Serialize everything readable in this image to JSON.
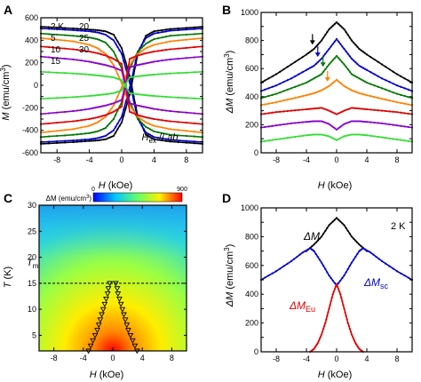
{
  "chart_data": [
    {
      "panel": "A",
      "type": "line",
      "xlabel": "H (kOe)",
      "ylabel": "M (emu/cm3)",
      "xlim": [
        -10,
        10
      ],
      "ylim": [
        -600,
        600
      ],
      "xticks": [
        -8,
        -4,
        0,
        4,
        8
      ],
      "yticks": [
        -600,
        -500,
        -400,
        -300,
        -200,
        -100,
        0,
        100,
        200,
        300,
        400,
        500,
        600
      ],
      "annotation": "Hex // ab",
      "legend_position": "top-left",
      "series": [
        {
          "name": "2 K",
          "color": "#000000",
          "x": [
            -10,
            -6,
            -4,
            -3,
            -2,
            -1,
            0,
            1,
            2,
            3,
            4,
            6,
            10
          ],
          "y_up": [
            -520,
            -505,
            -495,
            -490,
            -480,
            -450,
            -330,
            -80,
            280,
            440,
            480,
            500,
            520
          ],
          "y_down": [
            520,
            505,
            495,
            490,
            480,
            450,
            330,
            80,
            -280,
            -440,
            -480,
            -500,
            -520
          ]
        },
        {
          "name": "5",
          "color": "#0000cc",
          "x": [
            -10,
            -6,
            -4,
            -3,
            -2,
            -1,
            0,
            1,
            2,
            3,
            4,
            6,
            10
          ],
          "y_up": [
            -505,
            -490,
            -480,
            -470,
            -450,
            -400,
            -280,
            -20,
            300,
            420,
            460,
            485,
            505
          ],
          "y_down": [
            505,
            490,
            480,
            470,
            450,
            400,
            280,
            20,
            -300,
            -420,
            -460,
            -485,
            -505
          ]
        },
        {
          "name": "10",
          "color": "#007700",
          "x": [
            -10,
            -6,
            -4,
            -3,
            -2,
            -1,
            0,
            1,
            2,
            3,
            4,
            6,
            10
          ],
          "y_up": [
            -460,
            -440,
            -425,
            -410,
            -380,
            -300,
            -150,
            150,
            300,
            370,
            410,
            440,
            460
          ],
          "y_down": [
            460,
            440,
            425,
            410,
            380,
            300,
            150,
            -150,
            -300,
            -370,
            -410,
            -440,
            -460
          ]
        },
        {
          "name": "15",
          "color": "#ff8000",
          "x": [
            -10,
            -6,
            -4,
            -3,
            -2,
            -1,
            0,
            1,
            2,
            3,
            4,
            6,
            10
          ],
          "y_up": [
            -420,
            -390,
            -360,
            -330,
            -280,
            -180,
            -20,
            180,
            280,
            330,
            360,
            390,
            420
          ],
          "y_down": [
            420,
            390,
            360,
            330,
            280,
            180,
            20,
            -180,
            -280,
            -330,
            -360,
            -390,
            -420
          ]
        },
        {
          "name": "20",
          "color": "#e00000",
          "x": [
            -10,
            -6,
            -4,
            -3,
            -2,
            -1,
            0,
            1,
            2,
            3,
            4,
            6,
            10
          ],
          "y_up": [
            -345,
            -320,
            -300,
            -285,
            -265,
            -235,
            -190,
            235,
            265,
            285,
            300,
            320,
            345
          ],
          "y_down": [
            345,
            320,
            300,
            285,
            265,
            235,
            190,
            -235,
            -265,
            -285,
            -300,
            -320,
            -345
          ]
        },
        {
          "name": "25",
          "color": "#8800cc",
          "x": [
            -10,
            -6,
            -4,
            -3,
            -2,
            -1,
            0,
            1,
            2,
            3,
            4,
            6,
            10
          ],
          "y_up": [
            -255,
            -230,
            -210,
            -195,
            -180,
            -160,
            -130,
            160,
            180,
            195,
            210,
            230,
            255
          ],
          "y_down": [
            255,
            230,
            210,
            195,
            180,
            160,
            130,
            -160,
            -180,
            -195,
            -210,
            -230,
            -255
          ]
        },
        {
          "name": "30",
          "color": "#33dd33",
          "x": [
            -10,
            -6,
            -4,
            -3,
            -2,
            -1,
            0,
            1,
            2,
            3,
            4,
            6,
            10
          ],
          "y_up": [
            -120,
            -105,
            -95,
            -88,
            -80,
            -70,
            -45,
            70,
            80,
            88,
            95,
            105,
            120
          ],
          "y_down": [
            120,
            105,
            95,
            88,
            80,
            70,
            45,
            -70,
            -80,
            -88,
            -95,
            -105,
            -120
          ]
        }
      ]
    },
    {
      "panel": "B",
      "type": "line",
      "xlabel": "H (kOe)",
      "ylabel": "ΔM (emu/cm3)",
      "xlim": [
        -10,
        10
      ],
      "ylim": [
        0,
        1000
      ],
      "xticks": [
        -8,
        -4,
        0,
        4,
        8
      ],
      "yticks": [
        0,
        100,
        200,
        300,
        400,
        500,
        600,
        700,
        800,
        900,
        1000
      ],
      "arrow_positions_kOe": [
        -3.2,
        -2.5,
        -1.8,
        -1.2
      ],
      "series": [
        {
          "name": "2 K",
          "color": "#000000",
          "x": [
            -10,
            -8,
            -6,
            -4,
            -3,
            -2,
            -1,
            0,
            1,
            2,
            3,
            4,
            6,
            8,
            10
          ],
          "y": [
            500,
            560,
            630,
            700,
            740,
            800,
            880,
            930,
            880,
            800,
            740,
            700,
            630,
            560,
            500
          ]
        },
        {
          "name": "5",
          "color": "#0000cc",
          "x": [
            -10,
            -8,
            -6,
            -4,
            -3,
            -2,
            -1,
            0,
            1,
            2,
            3,
            4,
            6,
            8,
            10
          ],
          "y": [
            440,
            480,
            530,
            590,
            620,
            670,
            740,
            810,
            740,
            670,
            620,
            590,
            530,
            480,
            440
          ]
        },
        {
          "name": "10",
          "color": "#007700",
          "x": [
            -10,
            -8,
            -6,
            -4,
            -3,
            -2,
            -1,
            0,
            1,
            2,
            3,
            4,
            6,
            8,
            10
          ],
          "y": [
            390,
            420,
            460,
            500,
            530,
            560,
            630,
            690,
            630,
            560,
            530,
            500,
            460,
            420,
            390
          ]
        },
        {
          "name": "15",
          "color": "#ff8000",
          "x": [
            -10,
            -8,
            -6,
            -4,
            -3,
            -2,
            -1,
            0,
            1,
            2,
            3,
            4,
            6,
            8,
            10
          ],
          "y": [
            340,
            360,
            385,
            410,
            425,
            445,
            475,
            520,
            475,
            445,
            425,
            410,
            385,
            360,
            340
          ]
        },
        {
          "name": "20",
          "color": "#e00000",
          "x": [
            -10,
            -8,
            -6,
            -4,
            -3,
            -2,
            -1,
            0,
            1,
            2,
            3,
            4,
            6,
            8,
            10
          ],
          "y": [
            275,
            290,
            300,
            310,
            315,
            320,
            300,
            275,
            300,
            320,
            315,
            310,
            300,
            290,
            275
          ]
        },
        {
          "name": "25",
          "color": "#8800cc",
          "x": [
            -10,
            -8,
            -6,
            -4,
            -3,
            -2,
            -1,
            0,
            1,
            2,
            3,
            4,
            6,
            8,
            10
          ],
          "y": [
            180,
            195,
            210,
            220,
            225,
            225,
            205,
            165,
            205,
            225,
            225,
            220,
            210,
            195,
            180
          ]
        },
        {
          "name": "30",
          "color": "#33dd33",
          "x": [
            -10,
            -8,
            -6,
            -4,
            -3,
            -2,
            -1,
            0,
            1,
            2,
            3,
            4,
            6,
            8,
            10
          ],
          "y": [
            80,
            95,
            110,
            125,
            130,
            130,
            118,
            90,
            118,
            130,
            130,
            125,
            110,
            95,
            80
          ]
        }
      ]
    },
    {
      "panel": "C",
      "type": "heatmap",
      "xlabel": "H (kOe)",
      "ylabel": "T (K)",
      "xlim": [
        -10,
        10
      ],
      "ylim": [
        2,
        30
      ],
      "xticks": [
        -8,
        -4,
        0,
        4,
        8
      ],
      "yticks": [
        5,
        10,
        15,
        20,
        25,
        30
      ],
      "colorbar_label": "ΔM (emu/cm3)",
      "colorbar_range": [
        0,
        900
      ],
      "tm_label": "Tm",
      "tm_value": 15,
      "markers": [
        {
          "x": -3.3,
          "y": 2
        },
        {
          "x": -3.0,
          "y": 3
        },
        {
          "x": -2.7,
          "y": 4
        },
        {
          "x": -2.4,
          "y": 5
        },
        {
          "x": -2.1,
          "y": 6
        },
        {
          "x": -1.9,
          "y": 7
        },
        {
          "x": -1.7,
          "y": 8
        },
        {
          "x": -1.5,
          "y": 9
        },
        {
          "x": -1.3,
          "y": 10
        },
        {
          "x": -1.1,
          "y": 11
        },
        {
          "x": -0.9,
          "y": 12
        },
        {
          "x": -0.7,
          "y": 13
        },
        {
          "x": -0.6,
          "y": 14
        },
        {
          "x": -0.4,
          "y": 15
        },
        {
          "x": 3.3,
          "y": 2
        },
        {
          "x": 3.0,
          "y": 3
        },
        {
          "x": 2.7,
          "y": 4
        },
        {
          "x": 2.4,
          "y": 5
        },
        {
          "x": 2.1,
          "y": 6
        },
        {
          "x": 1.9,
          "y": 7
        },
        {
          "x": 1.7,
          "y": 8
        },
        {
          "x": 1.5,
          "y": 9
        },
        {
          "x": 1.3,
          "y": 10
        },
        {
          "x": 1.1,
          "y": 11
        },
        {
          "x": 0.9,
          "y": 12
        },
        {
          "x": 0.7,
          "y": 13
        },
        {
          "x": 0.6,
          "y": 14
        },
        {
          "x": 0.4,
          "y": 15
        }
      ]
    },
    {
      "panel": "D",
      "type": "line",
      "xlabel": "H (kOe)",
      "ylabel": "ΔM (emu/cm3)",
      "xlim": [
        -10,
        10
      ],
      "ylim": [
        0,
        1000
      ],
      "xticks": [
        -8,
        -4,
        0,
        4,
        8
      ],
      "yticks": [
        0,
        100,
        200,
        300,
        400,
        500,
        600,
        700,
        800,
        900,
        1000
      ],
      "annotation": "2 K",
      "series": [
        {
          "name": "ΔM",
          "color": "#000000",
          "x": [
            -4,
            -3,
            -2,
            -1,
            0,
            1,
            2,
            3,
            4
          ],
          "y": [
            700,
            745,
            800,
            880,
            930,
            880,
            800,
            745,
            700
          ]
        },
        {
          "name": "ΔMsc",
          "color": "#0000cc",
          "x": [
            -10,
            -8,
            -6,
            -4.5,
            -3.5,
            -3,
            -2,
            -1,
            0,
            1,
            2,
            3,
            3.5,
            4.5,
            6,
            8,
            10
          ],
          "y": [
            500,
            560,
            630,
            690,
            720,
            700,
            620,
            530,
            460,
            530,
            620,
            700,
            720,
            690,
            630,
            560,
            500
          ]
        },
        {
          "name": "ΔMEu",
          "color": "#e00000",
          "x": [
            -3.5,
            -3,
            -2.5,
            -2,
            -1.5,
            -1,
            -0.5,
            0,
            0.5,
            1,
            1.5,
            2,
            2.5,
            3,
            3.5
          ],
          "y": [
            0,
            20,
            60,
            120,
            200,
            300,
            400,
            470,
            400,
            300,
            200,
            120,
            60,
            20,
            0
          ]
        }
      ]
    }
  ],
  "panels": {
    "A": {
      "letter": "A",
      "ylabel_sym": "M",
      "unit_open": " (emu/cm",
      "unit_sup": "3",
      "unit_close": ")",
      "xlabel_sym": "H",
      "xlabel_unit": " (kOe)",
      "xticks": [
        "-8",
        "-4",
        "0",
        "4",
        "8"
      ],
      "yticks": [
        "-600",
        "-400",
        "-200",
        "0",
        "200",
        "400",
        "600"
      ],
      "legend": [
        {
          "label": "2 K",
          "color": "#000000"
        },
        {
          "label": "5",
          "color": "#0000cc"
        },
        {
          "label": "10",
          "color": "#007700"
        },
        {
          "label": "15",
          "color": "#ff8000"
        },
        {
          "label": "20",
          "color": "#e00000"
        },
        {
          "label": "25",
          "color": "#8800cc"
        },
        {
          "label": "30",
          "color": "#33dd33"
        }
      ],
      "ann_main": "H",
      "ann_sub": "ex",
      "ann_rest": " // ",
      "ann_ab": "ab"
    },
    "B": {
      "letter": "B",
      "ylabel_sym": "ΔM",
      "unit_open": " (emu/cm",
      "unit_sup": "3",
      "unit_close": ")",
      "xlabel_sym": "H",
      "xlabel_unit": " (kOe)",
      "xticks": [
        "-8",
        "-4",
        "0",
        "4",
        "8"
      ],
      "yticks": [
        "0",
        "200",
        "400",
        "600",
        "800",
        "1000"
      ]
    },
    "C": {
      "letter": "C",
      "ylabel_sym": "T",
      "ylabel_unit": " (K)",
      "xlabel_sym": "H",
      "xlabel_unit": " (kOe)",
      "xticks": [
        "-8",
        "-4",
        "0",
        "4",
        "8"
      ],
      "yticks": [
        "5",
        "10",
        "15",
        "20",
        "25",
        "30"
      ],
      "cbar_title": "ΔM (emu/cm",
      "cbar_sup": "3",
      "cbar_close": ")",
      "cbar_min": "0",
      "cbar_max": "900",
      "tm_main": "T",
      "tm_sub": "m"
    },
    "D": {
      "letter": "D",
      "ylabel_sym": "ΔM",
      "unit_open": " (emu/cm",
      "unit_sup": "3",
      "unit_close": ")",
      "xlabel_sym": "H",
      "xlabel_unit": " (kOe)",
      "xticks": [
        "-8",
        "-4",
        "0",
        "4",
        "8"
      ],
      "yticks": [
        "0",
        "200",
        "400",
        "600",
        "800",
        "1000"
      ],
      "ann": "2 K",
      "lab_dm": "ΔM",
      "lab_sc_main": "ΔM",
      "lab_sc_sub": "sc",
      "lab_eu_main": "ΔM",
      "lab_eu_sub": "Eu"
    }
  }
}
